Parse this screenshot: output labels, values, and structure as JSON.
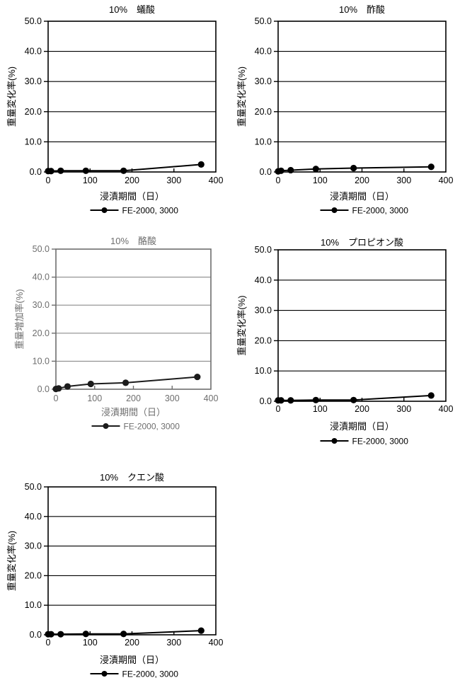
{
  "page": {
    "background": "#ffffff",
    "series_label": "FE-2000, 3000"
  },
  "chart_data": [
    {
      "type": "line",
      "title": "10%　蟻酸",
      "xlabel": "浸漬期間（日）",
      "ylabel": "重量変化率(%)",
      "xlim": [
        0,
        400
      ],
      "ylim": [
        0,
        50
      ],
      "xticks": [
        0,
        100,
        200,
        300,
        400
      ],
      "xtick_labels": [
        "0",
        "100",
        "200",
        "300",
        "400"
      ],
      "yticks": [
        0,
        10,
        20,
        30,
        40,
        50
      ],
      "ytick_labels": [
        "0.0",
        "10.0",
        "20.0",
        "30.0",
        "40.0",
        "50.0"
      ],
      "grid": "horizontal",
      "legend_position": "bottom",
      "colors": {
        "ink": "#000000",
        "grid": "#000000",
        "line": "#000000"
      },
      "series": [
        {
          "name": "FE-2000, 3000",
          "marker": "filled-circle",
          "color": "#000000",
          "x": [
            0,
            7,
            30,
            90,
            180,
            365
          ],
          "y": [
            0.3,
            0.3,
            0.4,
            0.4,
            0.4,
            2.5
          ]
        }
      ]
    },
    {
      "type": "line",
      "title": "10%　酢酸",
      "xlabel": "浸漬期間（日）",
      "ylabel": "重量変化率(%)",
      "xlim": [
        0,
        400
      ],
      "ylim": [
        0,
        50
      ],
      "xticks": [
        0,
        100,
        200,
        300,
        400
      ],
      "xtick_labels": [
        "0",
        "100",
        "200",
        "300",
        "400"
      ],
      "yticks": [
        0,
        10,
        20,
        30,
        40,
        50
      ],
      "ytick_labels": [
        "0.0",
        "10.0",
        "20.0",
        "30.0",
        "40.0",
        "50.0"
      ],
      "grid": "horizontal",
      "legend_position": "bottom",
      "colors": {
        "ink": "#000000",
        "grid": "#000000",
        "line": "#000000"
      },
      "series": [
        {
          "name": "FE-2000, 3000",
          "marker": "filled-circle",
          "color": "#000000",
          "x": [
            0,
            7,
            30,
            90,
            180,
            365
          ],
          "y": [
            0.2,
            0.4,
            0.6,
            1.0,
            1.3,
            1.7
          ]
        }
      ]
    },
    {
      "type": "line",
      "title": "10%　酪酸",
      "xlabel": "浸漬期間（日）",
      "ylabel": "重量増加率(%)",
      "xlim": [
        0,
        400
      ],
      "ylim": [
        0,
        50
      ],
      "xticks": [
        0,
        100,
        200,
        300,
        400
      ],
      "xtick_labels": [
        "0",
        "100",
        "200",
        "300",
        "400"
      ],
      "yticks": [
        0,
        10,
        20,
        30,
        40,
        50
      ],
      "ytick_labels": [
        "0.0",
        "10.0",
        "20.0",
        "30.0",
        "40.0",
        "50.0"
      ],
      "grid": "horizontal",
      "legend_position": "bottom",
      "colors": {
        "ink": "#6e6e6e",
        "grid": "#8c8c8c",
        "line": "#1c1c1c"
      },
      "series": [
        {
          "name": "FE-2000, 3000",
          "marker": "filled-circle",
          "color": "#1c1c1c",
          "x": [
            0,
            7,
            30,
            90,
            180,
            365
          ],
          "y": [
            0.1,
            0.3,
            1.0,
            1.9,
            2.3,
            4.4
          ]
        }
      ]
    },
    {
      "type": "line",
      "title": "10%　プロピオン酸",
      "xlabel": "浸漬期間（日）",
      "ylabel": "重量変化率(%)",
      "xlim": [
        0,
        400
      ],
      "ylim": [
        0,
        50
      ],
      "xticks": [
        0,
        100,
        200,
        300,
        400
      ],
      "xtick_labels": [
        "0",
        "100",
        "200",
        "300",
        "400"
      ],
      "yticks": [
        0,
        10,
        20,
        30,
        40,
        50
      ],
      "ytick_labels": [
        "0.0",
        "10.0",
        "20.0",
        "30.0",
        "40.0",
        "50.0"
      ],
      "grid": "horizontal",
      "legend_position": "bottom",
      "colors": {
        "ink": "#000000",
        "grid": "#000000",
        "line": "#000000"
      },
      "series": [
        {
          "name": "FE-2000, 3000",
          "marker": "filled-circle",
          "color": "#000000",
          "x": [
            0,
            7,
            30,
            90,
            180,
            365
          ],
          "y": [
            0.3,
            0.3,
            0.3,
            0.4,
            0.4,
            1.9
          ]
        }
      ]
    },
    {
      "type": "line",
      "title": "10%　クエン酸",
      "xlabel": "浸漬期間（日）",
      "ylabel": "重量変化率(%)",
      "xlim": [
        0,
        400
      ],
      "ylim": [
        0,
        50
      ],
      "xticks": [
        0,
        100,
        200,
        300,
        400
      ],
      "xtick_labels": [
        "0",
        "100",
        "200",
        "300",
        "400"
      ],
      "yticks": [
        0,
        10,
        20,
        30,
        40,
        50
      ],
      "ytick_labels": [
        "0.0",
        "10.0",
        "20.0",
        "30.0",
        "40.0",
        "50.0"
      ],
      "grid": "horizontal",
      "legend_position": "bottom",
      "colors": {
        "ink": "#000000",
        "grid": "#000000",
        "line": "#000000"
      },
      "series": [
        {
          "name": "FE-2000, 3000",
          "marker": "filled-circle",
          "color": "#000000",
          "x": [
            0,
            7,
            30,
            90,
            180,
            365
          ],
          "y": [
            0.2,
            0.2,
            0.2,
            0.3,
            0.3,
            1.4
          ]
        }
      ]
    }
  ]
}
